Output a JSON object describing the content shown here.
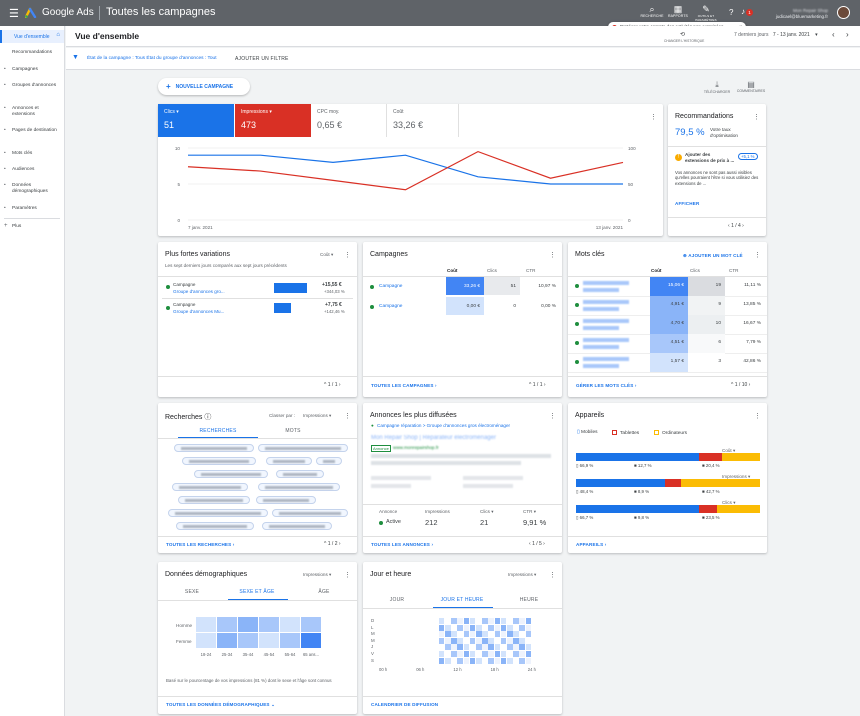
{
  "topbar": {
    "app_name": "Google Ads",
    "page_title": "Toutes les campagnes",
    "tools": [
      {
        "icon": "search-icon",
        "label": "RECHERCHE"
      },
      {
        "icon": "report-icon",
        "label": "RAPPORTS"
      },
      {
        "icon": "wrench-icon",
        "label": "OUTILS ET PARAMÈTRES"
      }
    ],
    "account_name": "Mon Repair Shop",
    "account_email": "judicael@bluemarketing.fr",
    "notification_count": "1"
  },
  "toast": {
    "text": "Protéger votre compte des activités non autorisées",
    "close": "×"
  },
  "sidebar": {
    "active": "Vue d'ensemble",
    "items": [
      "Recommandations",
      "Campagnes",
      "Groupes d'annonces",
      "Annonces et extensions",
      "Pages de destination",
      "Mots clés",
      "Audiences",
      "Données démographiques",
      "Paramètres"
    ],
    "more": "Plus"
  },
  "header": {
    "title": "Vue d'ensemble",
    "date_label": "7 derniers jours",
    "date_range": "7 - 13 janv. 2021",
    "change_history": "CHANGER L'HISTORIQUE"
  },
  "filters": {
    "text": "État de la campagne : Tous  État du groupe d'annonces : Tout",
    "add": "AJOUTER UN FILTRE"
  },
  "actions": {
    "new_campaign": "NOUVELLE CAMPAGNE",
    "download": "TÉLÉCHARGER",
    "comments": "COMMENTAIRES"
  },
  "perf": {
    "metrics": [
      {
        "label": "Clics",
        "value": "51",
        "color": "#1a73e8"
      },
      {
        "label": "Impressions",
        "value": "473",
        "color": "#d93025"
      },
      {
        "label": "CPC moy.",
        "value": "0,65 €"
      },
      {
        "label": "Coût",
        "value": "33,26 €"
      }
    ],
    "y_left": [
      "10",
      "5",
      "0"
    ],
    "y_right": [
      "100",
      "50",
      "0"
    ],
    "x_start": "7 janv. 2021",
    "x_end": "13 janv. 2021"
  },
  "chart_data": {
    "type": "line",
    "x": [
      "7 janv.",
      "8 janv.",
      "9 janv.",
      "10 janv.",
      "11 janv.",
      "12 janv.",
      "13 janv."
    ],
    "series": [
      {
        "name": "Clics",
        "values": [
          9,
          9,
          8,
          9,
          6,
          5,
          5
        ],
        "axis": "left",
        "color": "#1a73e8"
      },
      {
        "name": "Impressions",
        "values": [
          74,
          68,
          55,
          42,
          95,
          58,
          80
        ],
        "axis": "right",
        "color": "#d93025"
      }
    ],
    "ylim_left": [
      0,
      10
    ],
    "ylim_right": [
      0,
      100
    ]
  },
  "reco": {
    "title": "Recommandations",
    "score": "79,5 %",
    "score_label": "Votre taux d'optimisation",
    "item_title": "Ajouter des extensions de prix à ...",
    "item_badge": "+5,1 %",
    "item_desc": "Vos annonces ne sont pas aussi visibles qu'elles pourraient l'être si vous utilisiez des extensions de ...",
    "apply": "AFFICHER",
    "pager": "1 / 4"
  },
  "variations": {
    "title": "Plus fortes variations",
    "metric": "Coût",
    "sub": "Les sept derniers jours comparés aux sept jours précédents",
    "rows": [
      {
        "label": "Campagne",
        "link": "Groupe d'annonces gro...",
        "delta": "+15,55 €",
        "base": "+344,03 %"
      },
      {
        "label": "Campagne",
        "link": "Groupe d'annonces Mu...",
        "delta": "+7,75 €",
        "base": "+142,46 %"
      }
    ],
    "pager": "1 / 1"
  },
  "campaigns": {
    "title": "Campagnes",
    "headers": [
      "Coût",
      "Clics",
      "CTR"
    ],
    "rows": [
      {
        "name": "Campagne",
        "cost": "33,26 €",
        "clicks": "51",
        "ctr": "10,97 %"
      },
      {
        "name": "Campagne",
        "cost": "0,00 €",
        "clicks": "0",
        "ctr": "0,00 %"
      }
    ],
    "link": "TOUTES LES CAMPAGNES",
    "pager": "1 / 1"
  },
  "keywords": {
    "title": "Mots clés",
    "add": "AJOUTER UN MOT CLÉ",
    "headers": [
      "Coût",
      "Clics",
      "CTR"
    ],
    "rows": [
      {
        "cost": "15,06 €",
        "clicks": "19",
        "ctr": "11,11 %"
      },
      {
        "cost": "4,91 €",
        "clicks": "9",
        "ctr": "13,85 %"
      },
      {
        "cost": "4,70 €",
        "clicks": "10",
        "ctr": "16,67 %"
      },
      {
        "cost": "4,51 €",
        "clicks": "6",
        "ctr": "7,79 %"
      },
      {
        "cost": "1,57 €",
        "clicks": "3",
        "ctr": "42,86 %"
      }
    ],
    "link": "GÉRER LES MOTS CLÉS",
    "pager": "1 / 10"
  },
  "searches": {
    "title": "Recherches",
    "sort_label": "Classer par :",
    "sort_value": "Impressions",
    "tabs": [
      "RECHERCHES",
      "MOTS"
    ],
    "link": "TOUTES LES RECHERCHES",
    "pager": "1 / 2"
  },
  "ads": {
    "title": "Annonces les plus diffusées",
    "breadcrumb": "Campagne réparation > Groupe d'annonces gros électroménager",
    "headline": "Mon Repair Shop | Réparateur électroménager",
    "ad_badge": "Annonce",
    "url": "www.monrepairshop.fr",
    "table_headers": [
      "Annonce",
      "Impressions",
      "Clics",
      "CTR"
    ],
    "status": "Active",
    "impressions": "212",
    "clicks": "21",
    "ctr": "9,91 %",
    "link": "TOUTES LES ANNONCES",
    "pager": "1 / 5"
  },
  "devices": {
    "title": "Appareils",
    "legend": [
      "Mobiles",
      "Tablettes",
      "Ordinateurs"
    ],
    "rows": [
      {
        "metric": "Coût",
        "mobile": "66,9 %",
        "tablet": "12,7 %",
        "desktop": "20,4 %",
        "m": 66.9,
        "t": 12.7,
        "d": 20.4
      },
      {
        "metric": "Impressions",
        "mobile": "48,4 %",
        "tablet": "8,9 %",
        "desktop": "42,7 %",
        "m": 48.4,
        "t": 8.9,
        "d": 42.7
      },
      {
        "metric": "Clics",
        "mobile": "66,7 %",
        "tablet": "9,8 %",
        "desktop": "23,5 %",
        "m": 66.7,
        "t": 9.8,
        "d": 23.5
      }
    ],
    "link": "APPAREILS"
  },
  "demo": {
    "title": "Données démographiques",
    "metric": "Impressions",
    "tabs": [
      "SEXE",
      "SEXE ET ÂGE",
      "ÂGE"
    ],
    "rows": [
      "Homme",
      "Femme"
    ],
    "ages": [
      "18-24",
      "25-34",
      "35-44",
      "45-54",
      "55-64",
      "65 ans..."
    ],
    "note": "Basé sur le pourcentage de vos impressions (81 %) dont le sexe et l'âge sont connus",
    "link": "TOUTES LES DONNÉES DÉMOGRAPHIQUES"
  },
  "dayhour": {
    "title": "Jour et heure",
    "metric": "Impressions",
    "tabs": [
      "JOUR",
      "JOUR ET HEURE",
      "HEURE"
    ],
    "days": [
      "D",
      "L",
      "M",
      "M",
      "J",
      "V",
      "S"
    ],
    "hours": [
      "00 h",
      "06 h",
      "12 h",
      "18 h",
      "24 h"
    ],
    "link": "CALENDRIER DE DIFFUSION"
  }
}
